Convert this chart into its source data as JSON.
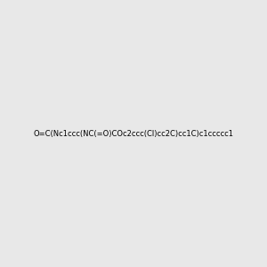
{
  "smiles": "O=C(Nc1ccc(NC(=O)COc2ccc(Cl)cc2C)cc1C)c1ccccc1",
  "image_size": 300,
  "background_color": "#e8e8e8",
  "atom_colors": {
    "N": "#0000ff",
    "O": "#ff0000",
    "Cl": "#00aa00",
    "C": "#000000",
    "H": "#000000"
  },
  "title": "",
  "bond_color": "#000000"
}
